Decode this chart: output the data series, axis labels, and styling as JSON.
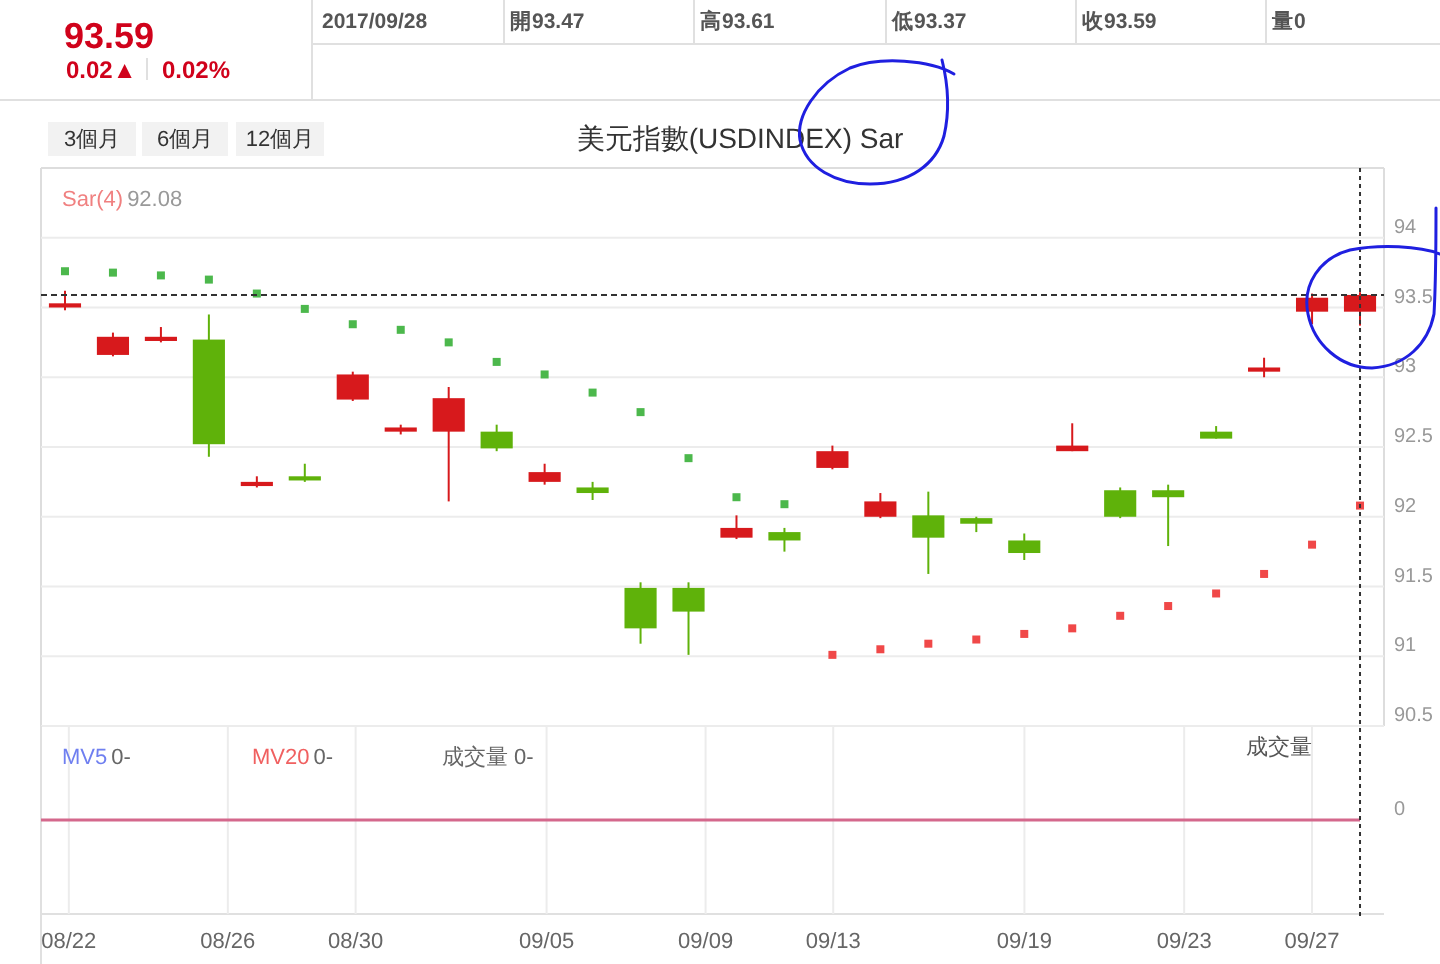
{
  "chart_data": [
    {
      "type": "other",
      "annotations": [
        "93.59",
        "0.02▲",
        "0.02%",
        "2017/09/28",
        "開93.47",
        "高93.61",
        "低93.37",
        "收93.59",
        "量0",
        "3個月",
        "6個月",
        "12個月"
      ]
    },
    {
      "type": "candlestick",
      "title": "美元指數(USDINDEX) Sar",
      "categories": [
        null,
        null,
        null,
        null,
        null,
        null,
        null,
        null,
        null,
        null,
        null,
        null,
        null,
        null,
        null,
        null,
        null,
        null,
        null,
        null,
        null,
        null,
        null,
        null,
        null,
        null,
        null,
        null
      ],
      "ohlc": [
        [
          93.5,
          93.62,
          93.48,
          93.53
        ],
        [
          93.16,
          93.32,
          93.15,
          93.29
        ],
        [
          93.26,
          93.36,
          93.25,
          93.29
        ],
        [
          93.27,
          93.45,
          92.43,
          92.52
        ],
        [
          92.22,
          92.29,
          92.21,
          92.25
        ],
        [
          92.29,
          92.38,
          92.25,
          92.26
        ],
        [
          92.84,
          93.04,
          92.83,
          93.02
        ],
        [
          92.61,
          92.66,
          92.59,
          92.64
        ],
        [
          92.61,
          92.93,
          92.11,
          92.85
        ],
        [
          92.61,
          92.66,
          92.47,
          92.49
        ],
        [
          92.25,
          92.38,
          92.23,
          92.32
        ],
        [
          92.21,
          92.25,
          92.12,
          92.17
        ],
        [
          91.49,
          91.53,
          91.09,
          91.2
        ],
        [
          91.49,
          91.53,
          91.01,
          91.32
        ],
        [
          91.85,
          92.01,
          91.84,
          91.92
        ],
        [
          91.89,
          91.92,
          91.75,
          91.83
        ],
        [
          92.35,
          92.51,
          92.34,
          92.47
        ],
        [
          92.0,
          92.17,
          91.99,
          92.11
        ],
        [
          92.01,
          92.18,
          91.59,
          91.85
        ],
        [
          91.99,
          92.0,
          91.89,
          91.95
        ],
        [
          91.83,
          91.88,
          91.69,
          91.74
        ],
        [
          92.47,
          92.67,
          92.47,
          92.51
        ],
        [
          92.19,
          92.21,
          91.99,
          92.0
        ],
        [
          92.19,
          92.23,
          91.79,
          92.14
        ],
        [
          92.61,
          92.65,
          92.56,
          92.56
        ],
        [
          93.04,
          93.14,
          93.0,
          93.07
        ],
        [
          93.47,
          93.6,
          93.38,
          93.57
        ],
        [
          93.47,
          93.61,
          93.37,
          93.59
        ]
      ],
      "colors": [
        "#d7191c",
        "#d7191c",
        "#d7191c",
        "#5fb20a",
        "#d7191c",
        "#5fb20a",
        "#d7191c",
        "#d7191c",
        "#d7191c",
        "#5fb20a",
        "#d7191c",
        "#5fb20a",
        "#5fb20a",
        "#5fb20a",
        "#d7191c",
        "#5fb20a",
        "#d7191c",
        "#d7191c",
        "#5fb20a",
        "#5fb20a",
        "#5fb20a",
        "#d7191c",
        "#5fb20a",
        "#5fb20a",
        "#5fb20a",
        "#d7191c",
        "#d7191c",
        "#d7191c"
      ],
      "series": [
        {
          "name": "Sar(4)",
          "type": "scatter",
          "color": "#f08080",
          "colors": [
            "#4cb84c",
            "#4cb84c",
            "#4cb84c",
            "#4cb84c",
            "#4cb84c",
            "#4cb84c",
            "#4cb84c",
            "#4cb84c",
            "#4cb84c",
            "#4cb84c",
            "#4cb84c",
            "#4cb84c",
            "#4cb84c",
            "#4cb84c",
            "#4cb84c",
            "#4cb84c",
            "#f04848",
            "#f04848",
            "#f04848",
            "#f04848",
            "#f04848",
            "#f04848",
            "#f04848",
            "#f04848",
            "#f04848",
            "#f04848",
            "#f04848",
            "#f04848"
          ],
          "values": [
            93.76,
            93.75,
            93.73,
            93.7,
            93.6,
            93.49,
            93.38,
            93.34,
            93.25,
            93.11,
            93.02,
            92.89,
            92.75,
            92.42,
            92.14,
            92.09,
            91.01,
            91.05,
            91.09,
            91.12,
            91.16,
            91.2,
            91.29,
            91.36,
            91.45,
            91.59,
            91.8,
            92.08
          ]
        }
      ],
      "ylim": [
        90.5,
        94.5
      ],
      "yticks": [
        90.5,
        91,
        91.5,
        92,
        92.5,
        93,
        93.5,
        94
      ],
      "grid": "y",
      "tick_labels": "y",
      "marker": "square",
      "annotations": [
        "92.08"
      ],
      "ref_lines": [
        {
          "axis": "y",
          "value": 93.59,
          "color": "#333333",
          "line_style": "dashed"
        }
      ]
    },
    {
      "type": "other",
      "annotations": [
        "MV5",
        "0-",
        "MV20",
        "0-",
        "成交量 0-",
        "成交量",
        "0",
        "08/22",
        "08/26",
        "08/30",
        "09/05",
        "09/09",
        "09/13",
        "09/19",
        "09/23",
        "09/27"
      ]
    }
  ]
}
